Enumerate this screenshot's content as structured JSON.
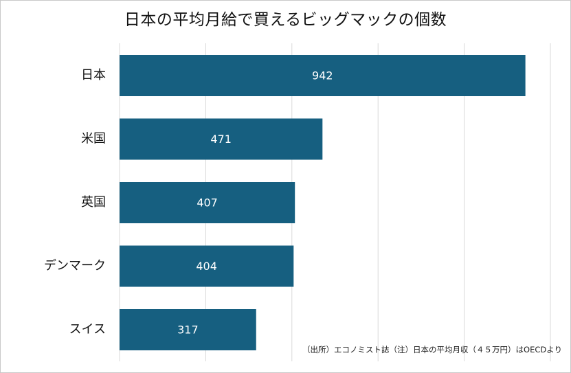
{
  "chart_data": {
    "type": "bar",
    "orientation": "horizontal",
    "title": "日本の平均月給で買えるビッグマックの個数",
    "categories": [
      "日本",
      "米国",
      "英国",
      "デンマーク",
      "スイス"
    ],
    "values": [
      942,
      471,
      407,
      404,
      317
    ],
    "xlim": [
      0,
      1000
    ],
    "grid": true,
    "legend": "none",
    "bar_color": "#165f80",
    "source_note": "（出所）エコノミスト誌（注）日本の平均月収（４５万円）はOECDより"
  }
}
